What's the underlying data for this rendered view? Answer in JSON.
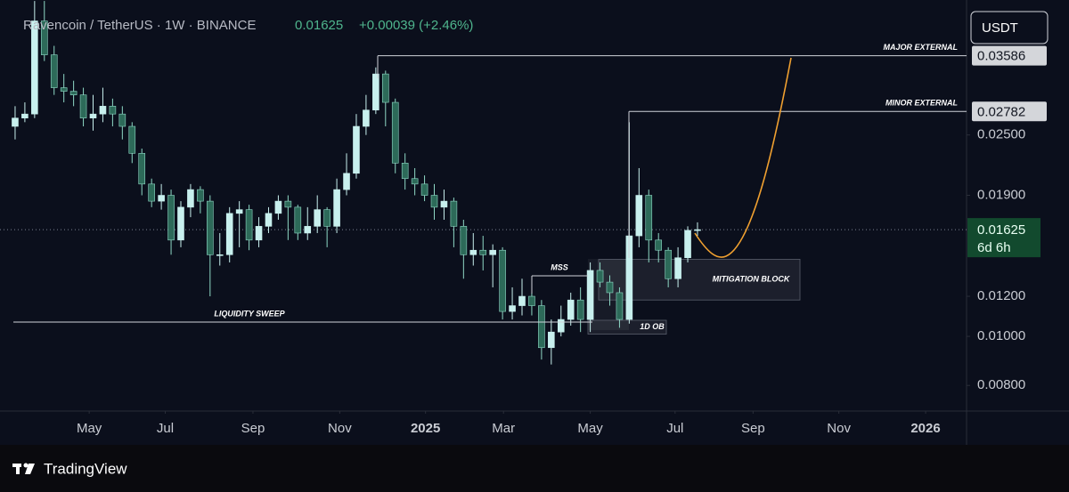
{
  "chart_data": {
    "type": "candlestick",
    "title": "Ravencoin / TetherUS · 1W · BINANCE",
    "last": {
      "value": 0.01625,
      "label": "0.01625"
    },
    "change": "+0.00039 (+2.46%)",
    "countdown": "6d 6h",
    "unit": "USDT",
    "log_scale": true,
    "grid": false,
    "up_color": "#c8f0ee",
    "down_color": "#2d6a59",
    "categories": [
      null,
      null,
      null,
      null,
      null,
      null,
      null,
      null,
      null,
      null,
      null,
      null,
      null,
      null,
      null,
      null,
      null,
      null,
      null,
      null,
      null,
      null,
      null,
      null,
      null,
      null,
      null,
      null,
      null,
      null,
      null,
      null,
      null,
      null,
      null,
      null,
      null,
      null,
      null,
      null,
      null,
      null,
      null,
      null,
      null,
      null,
      null,
      null,
      null,
      null,
      null,
      null,
      null,
      null,
      null,
      null,
      null,
      null,
      null,
      null,
      null,
      null,
      null,
      null,
      null,
      null,
      null,
      null,
      null,
      null,
      null
    ],
    "open": [
      0.026,
      0.027,
      0.0275,
      0.042,
      0.036,
      0.031,
      0.0305,
      0.03,
      0.027,
      0.0275,
      0.0285,
      0.0275,
      0.026,
      0.023,
      0.02,
      0.0185,
      0.019,
      0.0155,
      0.018,
      0.0195,
      0.0185,
      0.0145,
      0.0145,
      0.0175,
      0.0178,
      0.0155,
      0.0165,
      0.0175,
      0.0185,
      0.018,
      0.016,
      0.0165,
      0.0178,
      0.0165,
      0.0195,
      0.021,
      0.026,
      0.028,
      0.033,
      0.029,
      0.022,
      0.0205,
      0.02,
      0.019,
      0.018,
      0.0185,
      0.0165,
      0.0145,
      0.0148,
      0.0145,
      0.0148,
      0.0112,
      0.0115,
      0.012,
      0.0115,
      0.0095,
      0.0102,
      0.0108,
      0.0118,
      0.0108,
      0.0135,
      0.0128,
      0.0122,
      0.0108,
      0.0158,
      0.019,
      0.0155,
      0.0148,
      0.013,
      0.0143,
      0.0162
    ],
    "high": [
      0.0285,
      0.029,
      0.046,
      0.046,
      0.0375,
      0.033,
      0.032,
      0.031,
      0.03,
      0.031,
      0.0295,
      0.0285,
      0.0265,
      0.0235,
      0.0205,
      0.02,
      0.0195,
      0.0185,
      0.02,
      0.0198,
      0.019,
      0.016,
      0.018,
      0.0185,
      0.0182,
      0.0172,
      0.018,
      0.019,
      0.019,
      0.0182,
      0.018,
      0.019,
      0.018,
      0.0205,
      0.023,
      0.0275,
      0.03,
      0.034,
      0.0335,
      0.0295,
      0.023,
      0.0215,
      0.0208,
      0.02,
      0.0195,
      0.0188,
      0.017,
      0.016,
      0.0158,
      0.0152,
      0.015,
      0.0125,
      0.013,
      0.0122,
      0.0118,
      0.0108,
      0.0115,
      0.0122,
      0.0125,
      0.014,
      0.014,
      0.0132,
      0.0125,
      0.0265,
      0.0215,
      0.0195,
      0.016,
      0.015,
      0.015,
      0.0165,
      0.0168
    ],
    "low": [
      0.0245,
      0.0265,
      0.027,
      0.035,
      0.03,
      0.029,
      0.0285,
      0.026,
      0.0255,
      0.0265,
      0.026,
      0.0245,
      0.022,
      0.019,
      0.018,
      0.0178,
      0.0145,
      0.015,
      0.0172,
      0.0175,
      0.012,
      0.0138,
      0.014,
      0.015,
      0.0148,
      0.015,
      0.016,
      0.017,
      0.0155,
      0.0155,
      0.0155,
      0.016,
      0.015,
      0.016,
      0.019,
      0.0205,
      0.025,
      0.0275,
      0.026,
      0.021,
      0.0195,
      0.019,
      0.0185,
      0.017,
      0.017,
      0.015,
      0.013,
      0.0138,
      0.0135,
      0.0125,
      0.0108,
      0.0108,
      0.011,
      0.011,
      0.009,
      0.0088,
      0.01,
      0.0105,
      0.0102,
      0.0102,
      0.0125,
      0.0115,
      0.0104,
      0.0106,
      0.015,
      0.014,
      0.014,
      0.0125,
      0.0125,
      0.014,
      0.0158
    ],
    "close": [
      0.027,
      0.0275,
      0.042,
      0.036,
      0.031,
      0.0305,
      0.03,
      0.027,
      0.0275,
      0.0285,
      0.0275,
      0.026,
      0.023,
      0.02,
      0.0185,
      0.019,
      0.0155,
      0.018,
      0.0195,
      0.0185,
      0.0145,
      0.0145,
      0.0175,
      0.0178,
      0.0155,
      0.0165,
      0.0175,
      0.0185,
      0.018,
      0.016,
      0.0165,
      0.0178,
      0.0165,
      0.0195,
      0.021,
      0.026,
      0.028,
      0.033,
      0.029,
      0.022,
      0.0205,
      0.02,
      0.019,
      0.018,
      0.0185,
      0.0165,
      0.0145,
      0.0148,
      0.0145,
      0.0148,
      0.0112,
      0.0115,
      0.012,
      0.0115,
      0.0095,
      0.0102,
      0.0108,
      0.0118,
      0.0108,
      0.0135,
      0.0128,
      0.0122,
      0.0108,
      0.0158,
      0.019,
      0.0155,
      0.0148,
      0.013,
      0.0143,
      0.0162,
      0.01625
    ],
    "xlim": [
      -1.55,
      97.6
    ],
    "xticks": [
      {
        "value": 7.6,
        "label": "May"
      },
      {
        "value": 15.4,
        "label": "Jul"
      },
      {
        "value": 24.4,
        "label": "Sep"
      },
      {
        "value": 33.3,
        "label": "Nov"
      },
      {
        "value": 42.1,
        "label": "2025"
      },
      {
        "value": 50.1,
        "label": "Mar"
      },
      {
        "value": 59.0,
        "label": "May"
      },
      {
        "value": 67.7,
        "label": "Jul"
      },
      {
        "value": 75.7,
        "label": "Sep"
      },
      {
        "value": 84.5,
        "label": "Nov"
      },
      {
        "value": 93.4,
        "label": "2026"
      }
    ],
    "ylim": [
      0.00712,
      0.0462
    ],
    "yticks": [
      {
        "value": 0.025,
        "label": "0.02500"
      },
      {
        "value": 0.019,
        "label": "0.01900"
      },
      {
        "value": 0.012,
        "label": "0.01200"
      },
      {
        "value": 0.01,
        "label": "0.01000"
      },
      {
        "value": 0.008,
        "label": "0.00800"
      }
    ],
    "levels": [
      {
        "label": "MAJOR EXTERNAL",
        "value": 0.03586,
        "value_label": "0.03586"
      },
      {
        "label": "MINOR EXTERNAL",
        "value": 0.02782,
        "value_label": "0.02782"
      },
      {
        "label": "LIQUIDITY SWEEP",
        "value": 0.01067
      },
      {
        "label": "MSS",
        "value": 0.01317
      }
    ],
    "zones": [
      {
        "label": "MITIGATION BLOCK",
        "low": 0.0118,
        "high": 0.0142
      },
      {
        "label": "1D OB",
        "low": 0.0101,
        "high": 0.01076
      }
    ]
  },
  "footer": {
    "brand": "TradingView"
  }
}
